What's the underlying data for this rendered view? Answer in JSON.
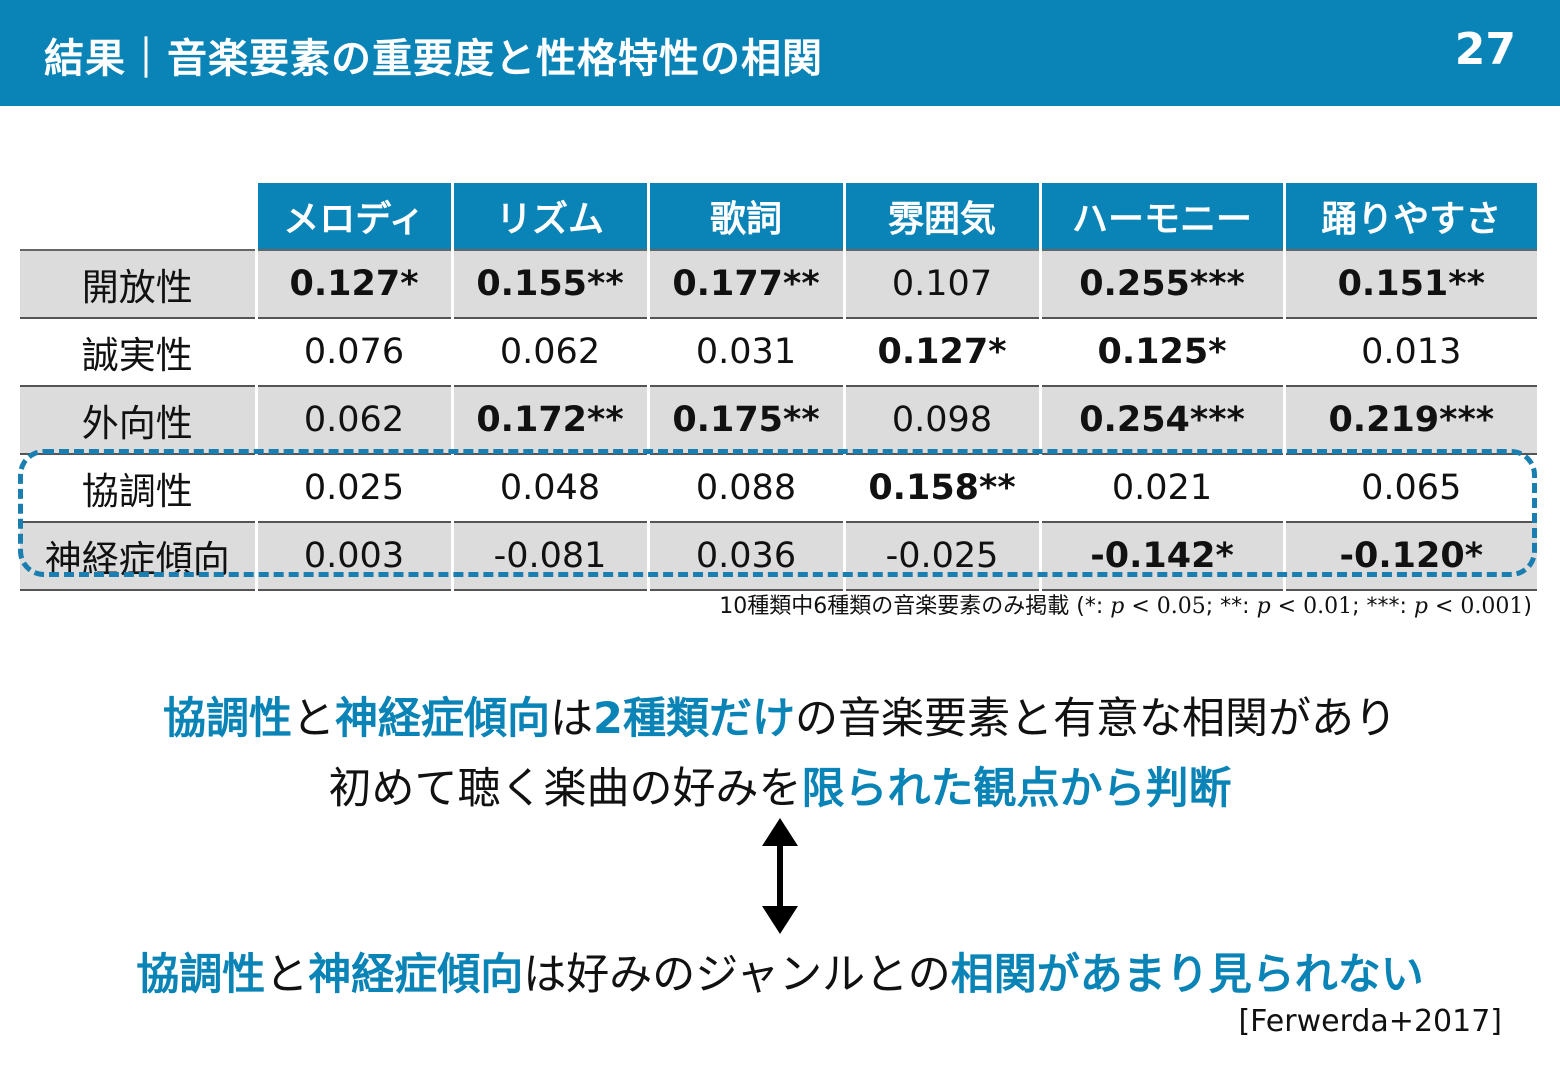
{
  "header": {
    "title": "結果｜音楽要素の重要度と性格特性の相関",
    "page_number": "27"
  },
  "table": {
    "columns": [
      "メロディ",
      "リズム",
      "歌詞",
      "雰囲気",
      "ハーモニー",
      "踊りやすさ"
    ],
    "rows": [
      {
        "trait": "開放性",
        "cells": [
          {
            "v": "0.127*",
            "sig": true
          },
          {
            "v": "0.155**",
            "sig": true
          },
          {
            "v": "0.177**",
            "sig": true
          },
          {
            "v": "0.107",
            "sig": false
          },
          {
            "v": "0.255***",
            "sig": true
          },
          {
            "v": "0.151**",
            "sig": true
          }
        ]
      },
      {
        "trait": "誠実性",
        "cells": [
          {
            "v": "0.076",
            "sig": false
          },
          {
            "v": "0.062",
            "sig": false
          },
          {
            "v": "0.031",
            "sig": false
          },
          {
            "v": "0.127*",
            "sig": true
          },
          {
            "v": "0.125*",
            "sig": true
          },
          {
            "v": "0.013",
            "sig": false
          }
        ]
      },
      {
        "trait": "外向性",
        "cells": [
          {
            "v": "0.062",
            "sig": false
          },
          {
            "v": "0.172**",
            "sig": true
          },
          {
            "v": "0.175**",
            "sig": true
          },
          {
            "v": "0.098",
            "sig": false
          },
          {
            "v": "0.254***",
            "sig": true
          },
          {
            "v": "0.219***",
            "sig": true
          }
        ]
      },
      {
        "trait": "協調性",
        "cells": [
          {
            "v": "0.025",
            "sig": false
          },
          {
            "v": "0.048",
            "sig": false
          },
          {
            "v": "0.088",
            "sig": false
          },
          {
            "v": "0.158**",
            "sig": true
          },
          {
            "v": "0.021",
            "sig": false
          },
          {
            "v": "0.065",
            "sig": false
          }
        ]
      },
      {
        "trait": "神経症傾向",
        "cells": [
          {
            "v": "0.003",
            "sig": false
          },
          {
            "v": "-0.081",
            "sig": false
          },
          {
            "v": "0.036",
            "sig": false
          },
          {
            "v": "-0.025",
            "sig": false
          },
          {
            "v": "-0.142*",
            "sig": true
          },
          {
            "v": "-0.120*",
            "sig": true
          }
        ]
      }
    ],
    "highlight_color": "#1a7fb0",
    "header_color": "#0a84b6"
  },
  "note": {
    "prefix": "10種類中6種類の音楽要素のみ掲載 (",
    "s1": "*: ",
    "p1": "p",
    "t1": " < 0.05",
    "s2": "; **: ",
    "p2": "p",
    "t2": " < 0.01",
    "s3": "; ***: ",
    "p3": "p",
    "t3": " < 0.001",
    "suffix": ")"
  },
  "finding1": {
    "a": "協調性",
    "b": "と",
    "c": "神経症傾向",
    "d": "は",
    "e": "2種類だけ",
    "f": "の音楽要素と有意な相関があり"
  },
  "finding2": {
    "a": "初めて聴く楽曲の好みを",
    "b": "限られた観点から判断"
  },
  "arrow_icon": "double-headed-vertical-arrow",
  "prior": {
    "a": "協調性",
    "b": "と",
    "c": "神経症傾向",
    "d": "は好みのジャンルとの",
    "e": "相関があまり見られない"
  },
  "citation": "[Ferwerda+2017]"
}
